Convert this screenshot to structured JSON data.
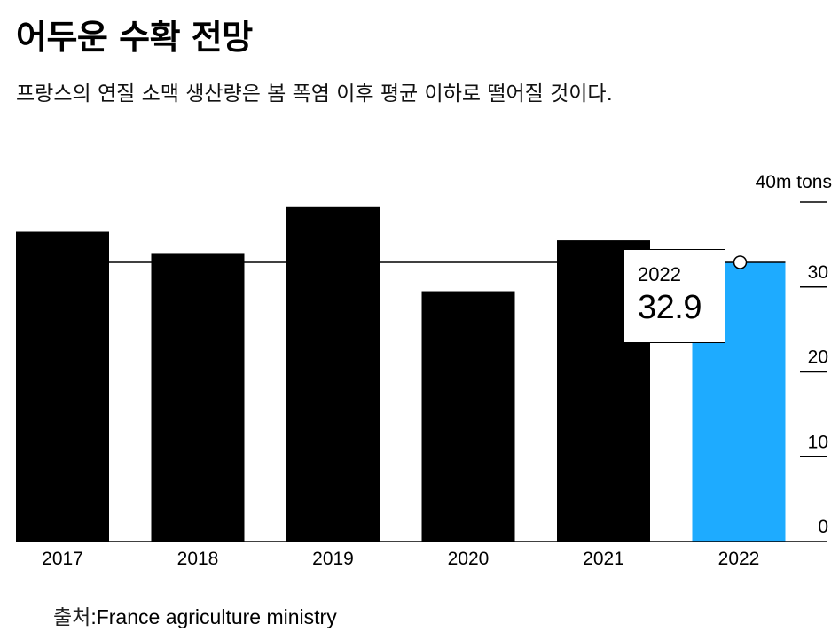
{
  "header": {
    "title": "어두운 수확 전망",
    "subtitle": "프랑스의 연질 소맥 생산량은 봄 폭염 이후 평균 이하로 떨어질 것이다."
  },
  "callout": {
    "year": "2022",
    "value": "32.9"
  },
  "source": {
    "label": "출처",
    "separator": ":",
    "text": "France agriculture ministry"
  },
  "colors": {
    "bar_default": "#000000",
    "bar_highlight": "#1eabff",
    "axis": "#000000",
    "background": "#ffffff"
  },
  "chart_data": {
    "type": "bar",
    "title": "어두운 수확 전망",
    "subtitle": "프랑스의 연질 소맥 생산량은 봄 폭염 이후 평균 이하로 떨어질 것이다.",
    "unit_label": "40m tons",
    "categories": [
      "2017",
      "2018",
      "2019",
      "2020",
      "2021",
      "2022"
    ],
    "values": [
      36.5,
      34.0,
      39.5,
      29.5,
      35.5,
      32.9
    ],
    "highlight_index": 5,
    "reference_line": 32.9,
    "ylim": [
      0,
      40
    ],
    "y_ticks": [
      {
        "value": 40,
        "label": ""
      },
      {
        "value": 30,
        "label": "30"
      },
      {
        "value": 20,
        "label": "20"
      },
      {
        "value": 10,
        "label": "10"
      },
      {
        "value": 0,
        "label": "0"
      }
    ],
    "y_axis_position": "right",
    "xlabel": "",
    "ylabel": "",
    "grid": false,
    "legend": "none"
  }
}
